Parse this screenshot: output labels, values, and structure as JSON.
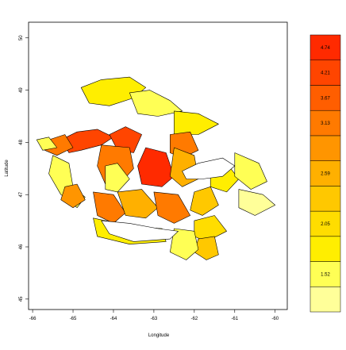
{
  "map": {
    "xlabel": "Longitude",
    "ylabel": "Latitude",
    "x_ticks": [
      -66,
      -65,
      -64,
      -63,
      -62,
      -61,
      -60
    ],
    "y_ticks": [
      45,
      46,
      47,
      48,
      49,
      50
    ],
    "x_range": [
      -66.1,
      -59.7
    ],
    "y_range": [
      44.8,
      50.3
    ],
    "palette": [
      "#FFFF99",
      "#FFFF55",
      "#FFEE00",
      "#FFDD00",
      "#FFC800",
      "#FFB000",
      "#FF9500",
      "#FF7A00",
      "#FF5E00",
      "#FF4500",
      "#FF2A00"
    ],
    "legend": {
      "labels": [
        "1.52",
        "2.05",
        "2.59",
        "3.13",
        "3.67",
        "4.21",
        "4.74"
      ],
      "label_band_index": [
        1,
        3,
        5,
        7,
        8,
        9,
        10
      ]
    },
    "regions": [
      {
        "name": "region-gaspe-tip",
        "color_index": 2,
        "ring": [
          [
            -64.8,
            49.05
          ],
          [
            -64.3,
            49.2
          ],
          [
            -63.6,
            49.25
          ],
          [
            -63.2,
            49.05
          ],
          [
            -63.5,
            48.85
          ],
          [
            -64.1,
            48.7
          ],
          [
            -64.6,
            48.75
          ]
        ]
      },
      {
        "name": "region-north-1",
        "color_index": 1,
        "ring": [
          [
            -63.6,
            48.95
          ],
          [
            -63.1,
            49.0
          ],
          [
            -62.6,
            48.8
          ],
          [
            -62.3,
            48.6
          ],
          [
            -62.9,
            48.5
          ],
          [
            -63.4,
            48.55
          ]
        ]
      },
      {
        "name": "region-north-2",
        "color_index": 2,
        "ring": [
          [
            -62.5,
            48.6
          ],
          [
            -61.9,
            48.55
          ],
          [
            -61.4,
            48.35
          ],
          [
            -61.9,
            48.15
          ],
          [
            -62.5,
            48.15
          ]
        ]
      },
      {
        "name": "region-restigouche",
        "color_index": 9,
        "ring": [
          [
            -65.3,
            48.05
          ],
          [
            -64.9,
            48.2
          ],
          [
            -64.4,
            48.25
          ],
          [
            -64.0,
            48.1
          ],
          [
            -64.3,
            47.95
          ],
          [
            -64.8,
            47.85
          ],
          [
            -65.1,
            47.8
          ]
        ]
      },
      {
        "name": "region-baie-chaleur",
        "color_index": 9,
        "ring": [
          [
            -64.1,
            48.15
          ],
          [
            -63.7,
            48.3
          ],
          [
            -63.3,
            48.15
          ],
          [
            -63.5,
            47.8
          ],
          [
            -63.9,
            47.85
          ]
        ]
      },
      {
        "name": "region-northeast-3",
        "color_index": 7,
        "ring": [
          [
            -62.6,
            48.15
          ],
          [
            -62.1,
            48.2
          ],
          [
            -61.9,
            47.85
          ],
          [
            -62.3,
            47.7
          ],
          [
            -62.6,
            47.8
          ]
        ]
      },
      {
        "name": "region-northwest-orange",
        "color_index": 7,
        "ring": [
          [
            -65.6,
            48.05
          ],
          [
            -65.2,
            48.15
          ],
          [
            -65.0,
            47.9
          ],
          [
            -65.4,
            47.75
          ],
          [
            -65.7,
            47.85
          ]
        ]
      },
      {
        "name": "region-central-red",
        "color_index": 10,
        "ring": [
          [
            -63.2,
            47.9
          ],
          [
            -62.7,
            47.8
          ],
          [
            -62.5,
            47.35
          ],
          [
            -62.8,
            47.15
          ],
          [
            -63.3,
            47.2
          ],
          [
            -63.4,
            47.55
          ]
        ]
      },
      {
        "name": "region-central-west",
        "color_index": 7,
        "ring": [
          [
            -64.3,
            47.95
          ],
          [
            -63.6,
            47.9
          ],
          [
            -63.5,
            47.5
          ],
          [
            -63.9,
            47.15
          ],
          [
            -64.2,
            47.2
          ],
          [
            -64.4,
            47.55
          ]
        ]
      },
      {
        "name": "region-central-yellow-west",
        "color_index": 1,
        "ring": [
          [
            -64.2,
            47.55
          ],
          [
            -63.9,
            47.6
          ],
          [
            -63.6,
            47.3
          ],
          [
            -63.9,
            47.05
          ],
          [
            -64.2,
            47.1
          ]
        ]
      },
      {
        "name": "region-central-mid",
        "color_index": 5,
        "ring": [
          [
            -62.5,
            47.9
          ],
          [
            -62.0,
            47.75
          ],
          [
            -61.9,
            47.3
          ],
          [
            -62.3,
            47.15
          ],
          [
            -62.6,
            47.35
          ]
        ]
      },
      {
        "name": "region-southwest-westmorland",
        "color_index": 7,
        "ring": [
          [
            -64.5,
            47.05
          ],
          [
            -64.0,
            47.0
          ],
          [
            -63.7,
            46.65
          ],
          [
            -64.0,
            46.45
          ],
          [
            -64.4,
            46.6
          ]
        ]
      },
      {
        "name": "region-southcentral",
        "color_index": 5,
        "ring": [
          [
            -63.9,
            47.05
          ],
          [
            -63.3,
            47.1
          ],
          [
            -62.9,
            46.75
          ],
          [
            -63.2,
            46.55
          ],
          [
            -63.7,
            46.6
          ]
        ]
      },
      {
        "name": "region-southeast-orange",
        "color_index": 7,
        "ring": [
          [
            -63.0,
            47.05
          ],
          [
            -62.4,
            47.0
          ],
          [
            -62.1,
            46.6
          ],
          [
            -62.5,
            46.45
          ],
          [
            -62.9,
            46.6
          ]
        ]
      },
      {
        "name": "region-east-1",
        "color_index": 4,
        "ring": [
          [
            -62.0,
            47.05
          ],
          [
            -61.6,
            47.15
          ],
          [
            -61.4,
            46.8
          ],
          [
            -61.8,
            46.6
          ],
          [
            -62.1,
            46.7
          ]
        ]
      },
      {
        "name": "region-east-2",
        "color_index": 2,
        "ring": [
          [
            -61.6,
            47.55
          ],
          [
            -61.2,
            47.6
          ],
          [
            -60.9,
            47.3
          ],
          [
            -61.2,
            47.05
          ],
          [
            -61.6,
            47.15
          ]
        ]
      },
      {
        "name": "region-far-east",
        "color_index": 1,
        "ring": [
          [
            -61.0,
            47.8
          ],
          [
            -60.4,
            47.6
          ],
          [
            -60.2,
            47.25
          ],
          [
            -60.6,
            47.1
          ],
          [
            -61.0,
            47.35
          ]
        ]
      },
      {
        "name": "region-cape-breton",
        "color_index": 0,
        "ring": [
          [
            -60.9,
            47.1
          ],
          [
            -60.3,
            47.0
          ],
          [
            -60.0,
            46.8
          ],
          [
            -60.5,
            46.6
          ],
          [
            -60.9,
            46.75
          ]
        ]
      },
      {
        "name": "region-south-1",
        "color_index": 3,
        "ring": [
          [
            -62.0,
            46.5
          ],
          [
            -61.5,
            46.6
          ],
          [
            -61.2,
            46.3
          ],
          [
            -61.7,
            46.1
          ],
          [
            -62.0,
            46.2
          ]
        ]
      },
      {
        "name": "region-south-2",
        "color_index": 4,
        "ring": [
          [
            -61.9,
            46.15
          ],
          [
            -61.5,
            46.2
          ],
          [
            -61.4,
            45.85
          ],
          [
            -61.7,
            45.75
          ],
          [
            -62.0,
            45.9
          ]
        ]
      },
      {
        "name": "region-south-3",
        "color_index": 1,
        "ring": [
          [
            -62.5,
            46.35
          ],
          [
            -62.0,
            46.3
          ],
          [
            -61.9,
            45.95
          ],
          [
            -62.2,
            45.75
          ],
          [
            -62.6,
            45.9
          ]
        ]
      },
      {
        "name": "region-nova-scotia-strip",
        "color_index": 2,
        "ring": [
          [
            -64.5,
            46.55
          ],
          [
            -63.6,
            46.4
          ],
          [
            -62.8,
            46.35
          ],
          [
            -62.7,
            46.1
          ],
          [
            -63.6,
            46.05
          ],
          [
            -64.4,
            46.2
          ]
        ]
      },
      {
        "name": "region-west-coast-strip",
        "color_index": 1,
        "ring": [
          [
            -65.5,
            47.75
          ],
          [
            -65.1,
            47.6
          ],
          [
            -65.0,
            47.15
          ],
          [
            -64.7,
            46.95
          ],
          [
            -64.9,
            46.75
          ],
          [
            -65.3,
            47.0
          ],
          [
            -65.6,
            47.4
          ]
        ]
      },
      {
        "name": "region-far-west-point",
        "color_index": 1,
        "ring": [
          [
            -65.9,
            48.05
          ],
          [
            -65.6,
            48.1
          ],
          [
            -65.4,
            47.9
          ],
          [
            -65.75,
            47.85
          ]
        ]
      },
      {
        "name": "region-lower-west",
        "color_index": 6,
        "ring": [
          [
            -65.2,
            47.15
          ],
          [
            -64.9,
            47.2
          ],
          [
            -64.7,
            46.9
          ],
          [
            -65.0,
            46.75
          ],
          [
            -65.3,
            46.9
          ]
        ]
      }
    ],
    "islands": [
      {
        "name": "island-anticosti",
        "ring": [
          [
            -62.3,
            47.45
          ],
          [
            -61.9,
            47.6
          ],
          [
            -61.3,
            47.7
          ],
          [
            -61.0,
            47.55
          ],
          [
            -61.3,
            47.35
          ],
          [
            -61.8,
            47.3
          ],
          [
            -62.2,
            47.3
          ]
        ]
      },
      {
        "name": "island-pei",
        "ring": [
          [
            -64.3,
            46.5
          ],
          [
            -63.6,
            46.45
          ],
          [
            -62.9,
            46.35
          ],
          [
            -62.4,
            46.3
          ],
          [
            -62.6,
            46.15
          ],
          [
            -63.5,
            46.1
          ],
          [
            -64.1,
            46.25
          ]
        ]
      }
    ]
  }
}
